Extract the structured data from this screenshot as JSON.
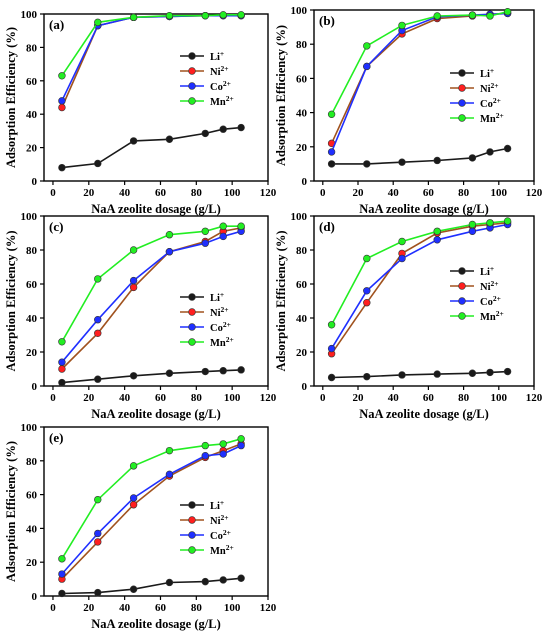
{
  "colors": {
    "Li": "#1a1a1a",
    "Ni": "#ff1f1f",
    "Co": "#1f2fff",
    "Mn": "#22ee22",
    "Ni_line": "#a0521e"
  },
  "chart_data": [
    {
      "type": "line",
      "panel_label": "(a)",
      "xlabel": "NaA zeolite dosage (g/L)",
      "ylabel": "Adsorption Efficiency (%)",
      "xlim": [
        -5,
        120
      ],
      "ylim": [
        0,
        100
      ],
      "xticks": [
        0,
        20,
        40,
        60,
        80,
        100,
        120
      ],
      "yticks": [
        0,
        20,
        40,
        60,
        80,
        100
      ],
      "legend_position": "center-right",
      "x": [
        5,
        25,
        45,
        65,
        85,
        95,
        105
      ],
      "series": [
        {
          "key": "Li",
          "name": "Li",
          "sup": "+",
          "values": [
            8,
            10.5,
            24,
            25,
            28.5,
            31,
            32
          ]
        },
        {
          "key": "Ni",
          "name": "Ni",
          "sup": "2+",
          "values": [
            44,
            93,
            98,
            98.5,
            99,
            99,
            99
          ]
        },
        {
          "key": "Co",
          "name": "Co",
          "sup": "2+",
          "values": [
            48,
            93,
            98,
            98.5,
            99,
            99,
            99
          ]
        },
        {
          "key": "Mn",
          "name": "Mn",
          "sup": "2+",
          "values": [
            63,
            95,
            98,
            99,
            99,
            99.5,
            99.5
          ]
        }
      ]
    },
    {
      "type": "line",
      "panel_label": "(b)",
      "xlabel": "NaA zeolite dosage (g/L)",
      "ylabel": "Adsorption Efficiency (%)",
      "xlim": [
        -5,
        120
      ],
      "ylim": [
        0,
        100
      ],
      "xticks": [
        0,
        20,
        40,
        60,
        80,
        100,
        120
      ],
      "yticks": [
        0,
        20,
        40,
        60,
        80,
        100
      ],
      "legend_position": "right",
      "x": [
        5,
        25,
        45,
        65,
        85,
        95,
        105
      ],
      "series": [
        {
          "key": "Li",
          "name": "Li",
          "sup": "+",
          "values": [
            10,
            10,
            11,
            12,
            13.5,
            17,
            19
          ]
        },
        {
          "key": "Ni",
          "name": "Ni",
          "sup": "2+",
          "values": [
            22,
            67,
            86,
            95,
            96.5,
            97.5,
            98
          ]
        },
        {
          "key": "Co",
          "name": "Co",
          "sup": "2+",
          "values": [
            17,
            67,
            88,
            96,
            97,
            97.5,
            98
          ]
        },
        {
          "key": "Mn",
          "name": "Mn",
          "sup": "2+",
          "values": [
            39,
            79,
            91,
            96.5,
            97,
            96.5,
            99
          ]
        }
      ]
    },
    {
      "type": "line",
      "panel_label": "(c)",
      "xlabel": "NaA zeolite dosage (g/L)",
      "ylabel": "Adsorption Efficiency (%)",
      "xlim": [
        -5,
        120
      ],
      "ylim": [
        0,
        100
      ],
      "xticks": [
        0,
        20,
        40,
        60,
        80,
        100,
        120
      ],
      "yticks": [
        0,
        20,
        40,
        60,
        80,
        100
      ],
      "legend_position": "right",
      "x": [
        5,
        25,
        45,
        65,
        85,
        95,
        105
      ],
      "series": [
        {
          "key": "Li",
          "name": "Li",
          "sup": "+",
          "values": [
            2,
            4,
            6,
            7.5,
            8.5,
            9,
            9.5
          ]
        },
        {
          "key": "Ni",
          "name": "Ni",
          "sup": "2+",
          "values": [
            10,
            31,
            58,
            79,
            85,
            91,
            93
          ]
        },
        {
          "key": "Co",
          "name": "Co",
          "sup": "2+",
          "values": [
            14,
            39,
            62,
            79,
            84,
            88,
            91
          ]
        },
        {
          "key": "Mn",
          "name": "Mn",
          "sup": "2+",
          "values": [
            26,
            63,
            80,
            89,
            91,
            94,
            94
          ]
        }
      ]
    },
    {
      "type": "line",
      "panel_label": "(d)",
      "xlabel": "NaA zeolite dosage (g/L)",
      "ylabel": "Adsorption Efficiency (%)",
      "xlim": [
        -5,
        120
      ],
      "ylim": [
        0,
        100
      ],
      "xticks": [
        0,
        20,
        40,
        60,
        80,
        100,
        120
      ],
      "yticks": [
        0,
        20,
        40,
        60,
        80,
        100
      ],
      "legend_position": "right",
      "x": [
        5,
        25,
        45,
        65,
        85,
        95,
        105
      ],
      "series": [
        {
          "key": "Li",
          "name": "Li",
          "sup": "+",
          "values": [
            5,
            5.5,
            6.5,
            7,
            7.5,
            8,
            8.5
          ]
        },
        {
          "key": "Ni",
          "name": "Ni",
          "sup": "2+",
          "values": [
            19,
            49,
            78,
            90,
            94,
            95,
            96
          ]
        },
        {
          "key": "Co",
          "name": "Co",
          "sup": "2+",
          "values": [
            22,
            56,
            75,
            86,
            91,
            93,
            95
          ]
        },
        {
          "key": "Mn",
          "name": "Mn",
          "sup": "2+",
          "values": [
            36,
            75,
            85,
            91,
            95,
            96,
            97
          ]
        }
      ]
    },
    {
      "type": "line",
      "panel_label": "(e)",
      "xlabel": "NaA zeolite dosage (g/L)",
      "ylabel": "Adsorption Efficiency (%)",
      "xlim": [
        -5,
        120
      ],
      "ylim": [
        0,
        100
      ],
      "xticks": [
        0,
        20,
        40,
        60,
        80,
        100,
        120
      ],
      "yticks": [
        0,
        20,
        40,
        60,
        80,
        100
      ],
      "legend_position": "right",
      "x": [
        5,
        25,
        45,
        65,
        85,
        95,
        105
      ],
      "series": [
        {
          "key": "Li",
          "name": "Li",
          "sup": "+",
          "values": [
            1.5,
            2,
            4,
            8,
            8.5,
            9.5,
            10.5
          ]
        },
        {
          "key": "Ni",
          "name": "Ni",
          "sup": "2+",
          "values": [
            10,
            32,
            54,
            71,
            82,
            86,
            90
          ]
        },
        {
          "key": "Co",
          "name": "Co",
          "sup": "2+",
          "values": [
            13,
            37,
            58,
            72,
            83,
            84,
            89
          ]
        },
        {
          "key": "Mn",
          "name": "Mn",
          "sup": "2+",
          "values": [
            22,
            57,
            77,
            86,
            89,
            90,
            93
          ]
        }
      ]
    }
  ]
}
